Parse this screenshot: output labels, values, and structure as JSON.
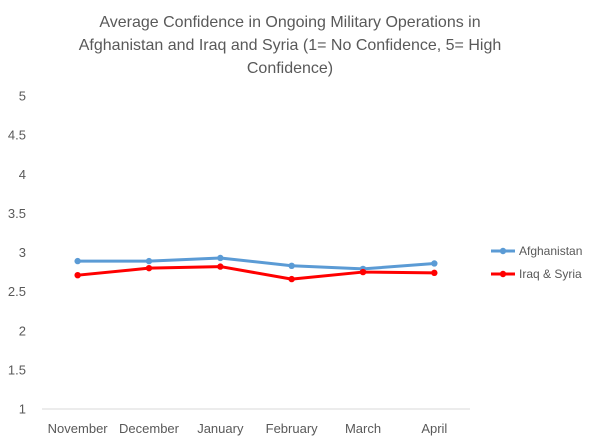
{
  "chart_data": {
    "type": "line",
    "title_lines": [
      "Average Confidence in Ongoing Military Operations in",
      "Afghanistan and Iraq and Syria (1= No Confidence, 5= High",
      "Confidence)"
    ],
    "xlabel": "",
    "ylabel": "",
    "categories": [
      "November",
      "December",
      "January",
      "February",
      "March",
      "April"
    ],
    "ylim": [
      1,
      5
    ],
    "yticks": [
      "5",
      "4.5",
      "4",
      "3.5",
      "3",
      "2.5",
      "2",
      "1.5",
      "1"
    ],
    "grid": false,
    "legend_position": "right",
    "series": [
      {
        "name": "Afghanistan",
        "color": "#5b9bd5",
        "values": [
          2.89,
          2.89,
          2.93,
          2.83,
          2.79,
          2.86
        ]
      },
      {
        "name": "Iraq & Syria",
        "color": "#ff0000",
        "values": [
          2.71,
          2.8,
          2.82,
          2.66,
          2.75,
          2.74
        ]
      }
    ]
  }
}
